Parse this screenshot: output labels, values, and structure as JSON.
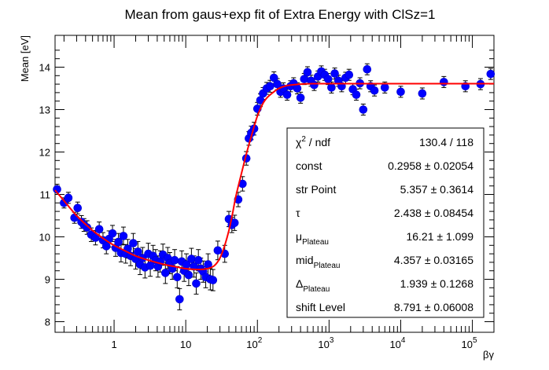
{
  "chart_data": {
    "type": "scatter",
    "title": "Mean from gaus+exp fit of Extra Energy with ClSz=1",
    "xlabel": "βγ",
    "ylabel": "Mean [eV]",
    "xscale": "log",
    "xlim": [
      0.15,
      200000
    ],
    "ylim": [
      7.75,
      14.75
    ],
    "y_ticks": [
      8,
      9,
      10,
      11,
      12,
      13,
      14
    ],
    "x_ticks": [
      {
        "value": 1,
        "label": "1"
      },
      {
        "value": 10,
        "label": "10"
      },
      {
        "value": 100,
        "label": "10",
        "exp": "2"
      },
      {
        "value": 1000,
        "label": "10",
        "exp": "3"
      },
      {
        "value": 10000,
        "label": "10",
        "exp": "4"
      },
      {
        "value": 100000,
        "label": "10",
        "exp": "5"
      }
    ],
    "colors": {
      "marker": "#0000ff",
      "marker_edge": "#0000cc",
      "fit": "#ff0000",
      "error": "#000000"
    },
    "series": [
      {
        "name": "data",
        "x": [
          0.16,
          0.2,
          0.23,
          0.28,
          0.31,
          0.35,
          0.38,
          0.42,
          0.48,
          0.55,
          0.62,
          0.7,
          0.78,
          0.85,
          0.95,
          1.05,
          1.15,
          1.25,
          1.35,
          1.45,
          1.55,
          1.7,
          1.85,
          2.0,
          2.15,
          2.3,
          2.5,
          2.7,
          3.0,
          3.2,
          3.5,
          3.8,
          4.1,
          4.4,
          4.8,
          5.2,
          5.6,
          6.0,
          6.5,
          7.0,
          7.6,
          8.2,
          8.8,
          9.5,
          10.2,
          11.0,
          12.0,
          13.0,
          14.0,
          15.0,
          16.2,
          17.5,
          19.0,
          20.5,
          22.0,
          24.0,
          28.0,
          35.0,
          40.0,
          44.0,
          48.0,
          54.0,
          62.0,
          70.0,
          76.0,
          82.0,
          90.0,
          100.0,
          110.0,
          120.0,
          135.0,
          150.0,
          170.0,
          190.0,
          210.0,
          230.0,
          260.0,
          290.0,
          320.0,
          360.0,
          400.0,
          450.0,
          500.0,
          560.0,
          620.0,
          700.0,
          780.0,
          870.0,
          970.0,
          1080.0,
          1200.0,
          1350.0,
          1500.0,
          1700.0,
          1900.0,
          2150.0,
          2400.0,
          2700.0,
          3000.0,
          3400.0,
          3800.0,
          4300.0,
          6000.0,
          10000.0,
          20000.0,
          40000.0,
          80000.0,
          130000.0,
          180000.0
        ],
        "y": [
          11.12,
          10.8,
          10.92,
          10.45,
          10.68,
          10.35,
          10.28,
          10.22,
          10.05,
          9.98,
          10.18,
          9.92,
          9.78,
          9.95,
          10.08,
          9.74,
          9.88,
          9.62,
          10.02,
          9.6,
          9.72,
          9.55,
          9.85,
          9.48,
          9.65,
          9.35,
          9.5,
          9.28,
          9.6,
          9.32,
          9.55,
          9.45,
          9.3,
          9.42,
          9.58,
          9.15,
          9.5,
          9.38,
          9.25,
          9.45,
          9.05,
          8.53,
          9.42,
          9.2,
          9.35,
          9.1,
          9.48,
          9.3,
          8.9,
          9.45,
          9.25,
          9.18,
          9.05,
          9.35,
          9.0,
          8.98,
          9.68,
          9.6,
          10.42,
          10.28,
          10.33,
          10.88,
          11.25,
          11.85,
          12.32,
          12.45,
          12.55,
          13.02,
          13.22,
          13.38,
          13.5,
          13.55,
          13.75,
          13.6,
          13.42,
          13.5,
          13.35,
          13.55,
          13.62,
          13.5,
          13.28,
          13.72,
          13.88,
          13.68,
          13.58,
          13.78,
          13.9,
          13.82,
          13.72,
          13.52,
          13.85,
          13.68,
          13.55,
          13.75,
          13.82,
          13.48,
          13.35,
          13.62,
          13.0,
          13.95,
          13.55,
          13.45,
          13.52,
          13.42,
          13.38,
          13.65,
          13.55,
          13.6,
          13.84
        ],
        "err": [
          0.12,
          0.12,
          0.13,
          0.13,
          0.14,
          0.15,
          0.15,
          0.16,
          0.16,
          0.17,
          0.17,
          0.18,
          0.18,
          0.19,
          0.19,
          0.2,
          0.2,
          0.21,
          0.21,
          0.22,
          0.22,
          0.23,
          0.23,
          0.24,
          0.24,
          0.24,
          0.25,
          0.25,
          0.25,
          0.25,
          0.25,
          0.25,
          0.25,
          0.25,
          0.25,
          0.25,
          0.25,
          0.25,
          0.25,
          0.25,
          0.25,
          0.25,
          0.25,
          0.25,
          0.25,
          0.25,
          0.25,
          0.25,
          0.25,
          0.25,
          0.25,
          0.25,
          0.25,
          0.25,
          0.25,
          0.25,
          0.22,
          0.2,
          0.18,
          0.18,
          0.18,
          0.17,
          0.17,
          0.16,
          0.16,
          0.16,
          0.15,
          0.15,
          0.15,
          0.14,
          0.14,
          0.14,
          0.14,
          0.13,
          0.13,
          0.13,
          0.13,
          0.13,
          0.13,
          0.13,
          0.13,
          0.13,
          0.13,
          0.13,
          0.13,
          0.13,
          0.13,
          0.13,
          0.13,
          0.13,
          0.13,
          0.13,
          0.13,
          0.13,
          0.13,
          0.13,
          0.13,
          0.13,
          0.13,
          0.13,
          0.13,
          0.13,
          0.13,
          0.13,
          0.13,
          0.13,
          0.13,
          0.13,
          0.13
        ]
      }
    ],
    "fit": {
      "name": "gaus+exp fit",
      "x": [
        0.15,
        0.2,
        0.3,
        0.5,
        0.8,
        1.0,
        1.5,
        2.0,
        3.0,
        5.0,
        8.0,
        10.0,
        15.0,
        20.0,
        25.0,
        30.0,
        35.0,
        40.0,
        45.0,
        50.0,
        60.0,
        70.0,
        80.0,
        90.0,
        100.0,
        120.0,
        140.0,
        170.0,
        200.0,
        250.0,
        300.0,
        400.0,
        600.0,
        1000.0,
        10000.0,
        100000.0,
        200000.0
      ],
      "y": [
        11.1,
        10.85,
        10.5,
        10.15,
        9.9,
        9.8,
        9.65,
        9.55,
        9.45,
        9.35,
        9.28,
        9.25,
        9.23,
        9.25,
        9.32,
        9.5,
        9.8,
        10.15,
        10.55,
        10.95,
        11.5,
        11.95,
        12.3,
        12.6,
        12.85,
        13.15,
        13.3,
        13.42,
        13.5,
        13.56,
        13.58,
        13.6,
        13.61,
        13.61,
        13.61,
        13.61,
        13.61
      ]
    },
    "stats": [
      {
        "name": "χ",
        "sup": "2",
        "tail": " / ndf",
        "value": "130.4 / 118"
      },
      {
        "name": "const",
        "value": "0.2958 ± 0.02054"
      },
      {
        "name": "str Point",
        "value": "5.357 ± 0.3614"
      },
      {
        "name": "τ",
        "value": "2.438 ± 0.08454"
      },
      {
        "name": "μ",
        "sub": "Plateau",
        "value": "16.21 ± 1.099"
      },
      {
        "name": "mid",
        "sub": "Plateau",
        "value": "4.357 ± 0.03165"
      },
      {
        "name": "Δ",
        "sub": "Plateau",
        "value": "1.939 ± 0.1268"
      },
      {
        "name": "shift Level",
        "value": "8.791 ± 0.06008"
      }
    ]
  }
}
